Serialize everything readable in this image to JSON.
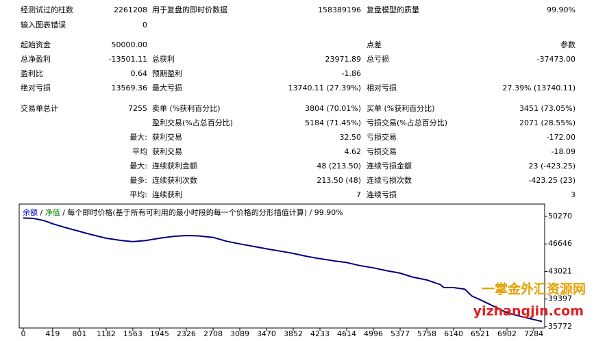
{
  "report": {
    "rows": [
      [
        "经测试过的柱数",
        "2261208",
        "用于复盘的即时价数据",
        "158389196",
        "复盘模型的质量",
        "99.90%"
      ],
      [
        "输入图表错误",
        "0",
        null,
        null,
        null,
        null
      ],
      [
        "起始资金",
        "50000.00",
        null,
        null,
        "点差",
        "参数"
      ],
      [
        "总净盈利",
        "-13501.11",
        "总获利",
        "23971.89",
        "总亏损",
        "-37473.00"
      ],
      [
        "盈利比",
        "0.64",
        "预期盈利",
        "-1.86",
        null,
        null
      ],
      [
        "绝对亏损",
        "13569.36",
        "最大亏损",
        "13740.11 (27.39%)",
        "相对亏损",
        "27.39% (13740.11)"
      ],
      [
        "交易单总计",
        "7255",
        "卖单 (%获利百分比)",
        "3804 (70.01%)",
        "买单 (%获利百分比)",
        "3451 (73.05%)"
      ],
      [
        null,
        null,
        "盈利交易(%占总百分比)",
        "5184 (71.45%)",
        "亏损交易(%占总百分比)",
        "2071 (28.55%)"
      ],
      [
        null,
        "最大:",
        "获利交易",
        "32.50",
        "亏损交易",
        "-172.00"
      ],
      [
        null,
        "平均",
        "获利交易",
        "4.62",
        "亏损交易",
        "-18.09"
      ],
      [
        null,
        "最大:",
        "连续获利金额",
        "48 (213.50)",
        "连续亏损金额",
        "23 (-423.25)"
      ],
      [
        null,
        "最多:",
        "连续获利次数",
        "213.50 (48)",
        "连续亏损次数",
        "-423.25 (23)"
      ],
      [
        null,
        "平均:",
        "连续获利",
        "7",
        "连续亏损",
        "3"
      ]
    ]
  },
  "chart_data": {
    "type": "line",
    "legend": [
      {
        "text": "余额",
        "color": "#0000cc"
      },
      {
        "text": "净值",
        "color": "#008000"
      }
    ],
    "separator": " / ",
    "subtitle": "每个即时价格(基于所有可利用的最小时段的每一个价格的分形插值计算)",
    "quality": "99.90%",
    "x": [
      0,
      150,
      300,
      419,
      600,
      801,
      1000,
      1182,
      1400,
      1563,
      1750,
      1945,
      2150,
      2326,
      2500,
      2708,
      2900,
      3089,
      3300,
      3470,
      3700,
      3852,
      4050,
      4233,
      4450,
      4614,
      4800,
      4996,
      5200,
      5377,
      5550,
      5758,
      5950,
      6000,
      6140,
      6300,
      6400,
      6521,
      6700,
      6902,
      7100,
      7284,
      7400
    ],
    "series": [
      {
        "name": "余额",
        "color": "#000080",
        "values": [
          50050,
          50000,
          49700,
          49300,
          48800,
          48300,
          47800,
          47400,
          47100,
          46950,
          47100,
          47400,
          47650,
          47750,
          47700,
          47500,
          47000,
          46650,
          46300,
          46000,
          45650,
          45400,
          45000,
          44700,
          44400,
          44200,
          43800,
          43500,
          43100,
          42800,
          42300,
          41900,
          41300,
          40900,
          40900,
          40700,
          39800,
          39300,
          38500,
          37600,
          37100,
          36700,
          36450
        ]
      }
    ],
    "xlim": [
      0,
      7420
    ],
    "ylim": [
      35680,
      51710
    ],
    "xticks": [
      0,
      419,
      801,
      1182,
      1563,
      1945,
      2326,
      2708,
      3089,
      3470,
      3852,
      4233,
      4614,
      4996,
      5377,
      5758,
      6140,
      6521,
      6902,
      7284
    ],
    "yticks": [
      35772,
      39397,
      43021,
      46646,
      50270
    ]
  },
  "watermark": {
    "line1": "一掌金外汇资源网",
    "line2": "yizhangjin.com"
  }
}
